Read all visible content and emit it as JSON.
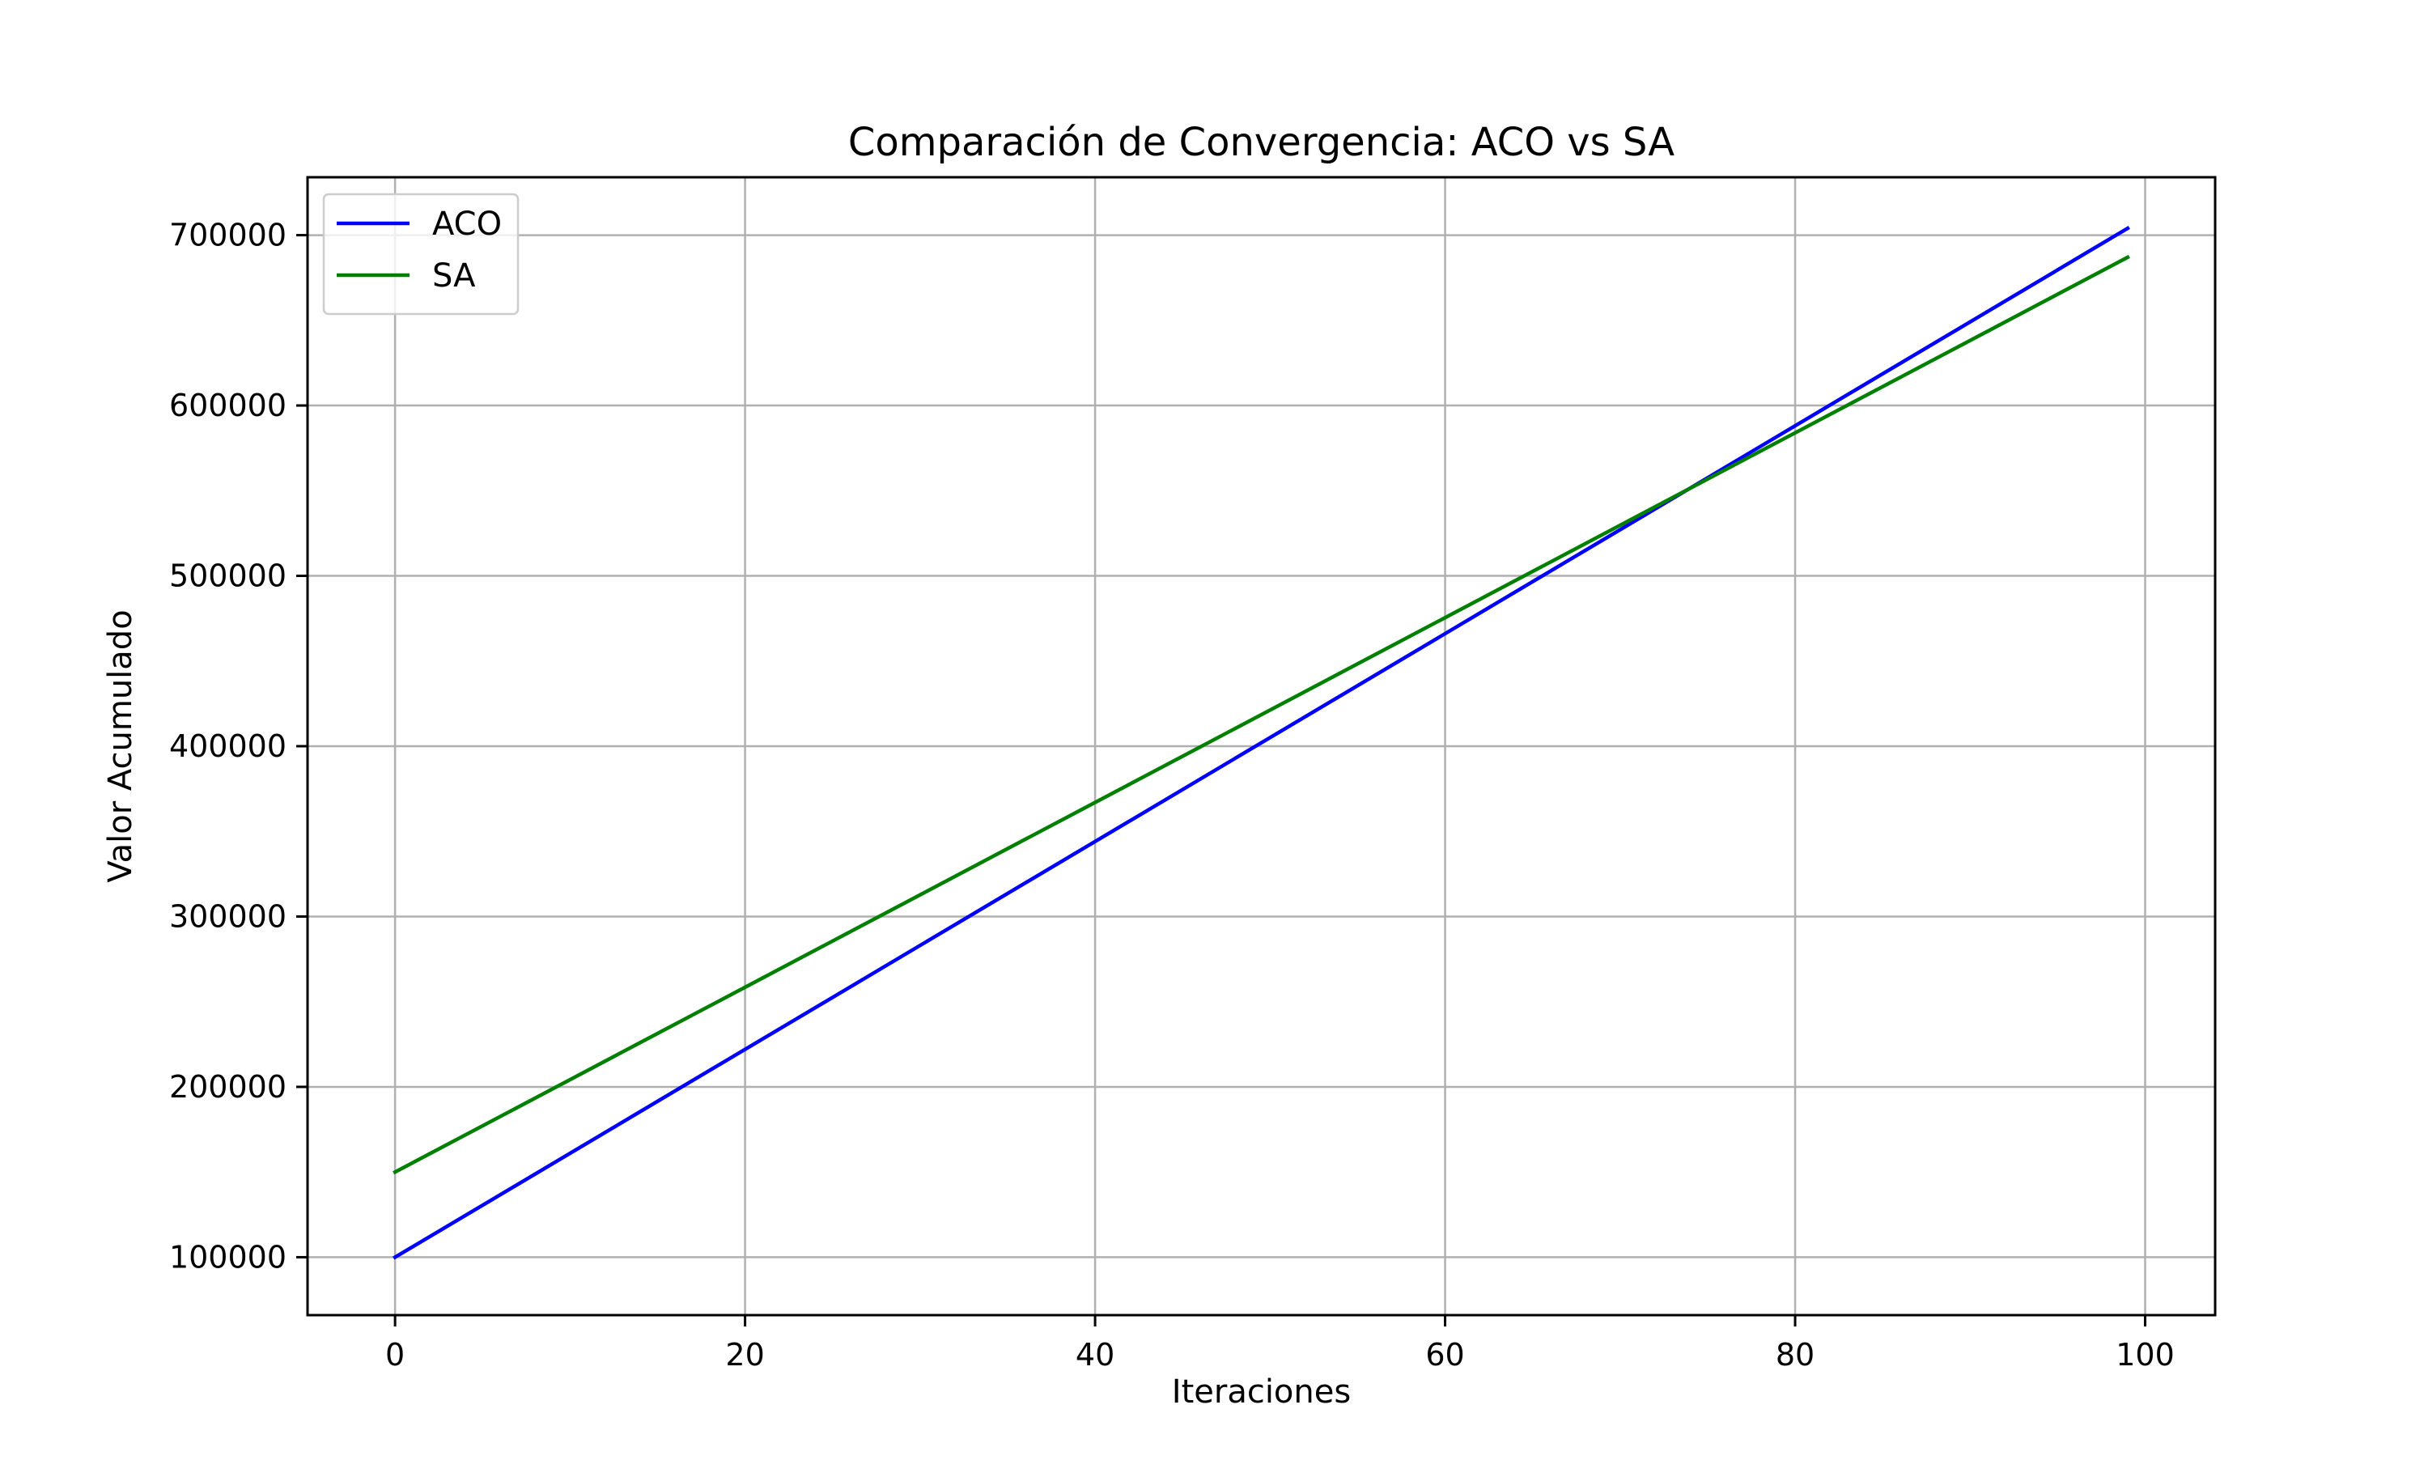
{
  "chart_data": {
    "type": "line",
    "title": "Comparación de Convergencia: ACO vs SA",
    "xlabel": "Iteraciones",
    "ylabel": "Valor Acumulado",
    "xlim": [
      -5,
      104
    ],
    "ylim": [
      66000,
      734000
    ],
    "xticks": [
      0,
      20,
      40,
      60,
      80,
      100
    ],
    "yticks": [
      100000,
      200000,
      300000,
      400000,
      500000,
      600000,
      700000
    ],
    "grid": true,
    "legend_position": "top-left",
    "series": [
      {
        "name": "ACO",
        "color": "#0000ff",
        "x": [
          0,
          99
        ],
        "y": [
          100000,
          704000
        ]
      },
      {
        "name": "SA",
        "color": "#008000",
        "x": [
          0,
          99
        ],
        "y": [
          150000,
          687000
        ]
      }
    ]
  }
}
